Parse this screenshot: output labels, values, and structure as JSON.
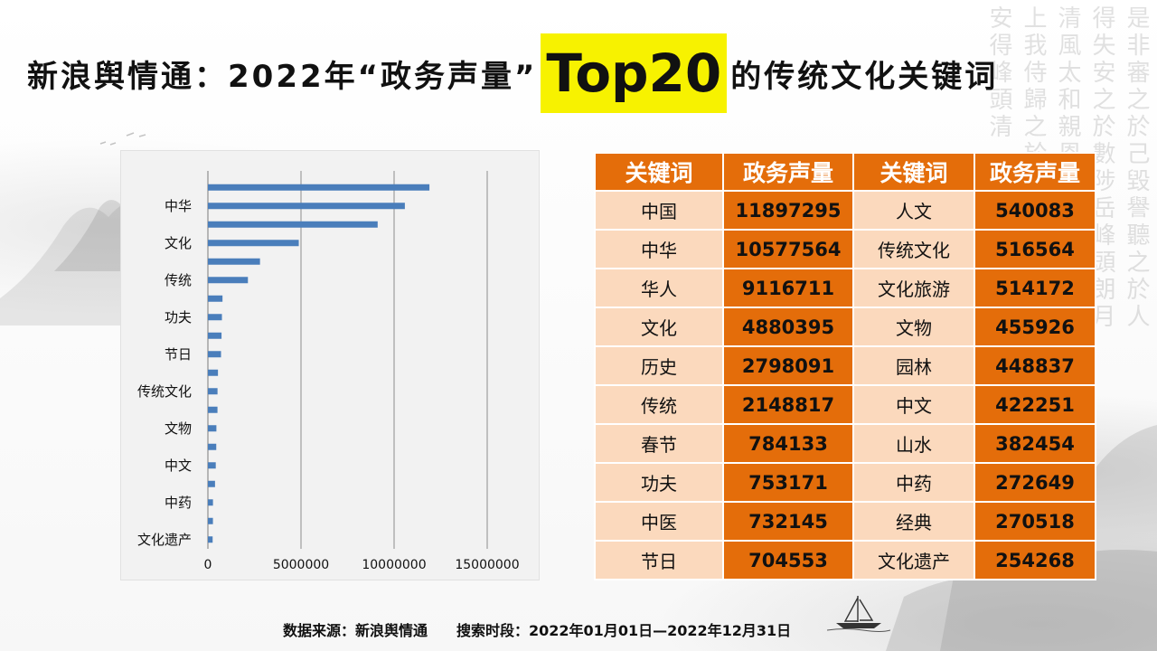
{
  "title": {
    "prefix": "新浪舆情通：2022年“政务声量”",
    "highlight": "Top20",
    "suffix": "的传统文化关键词"
  },
  "colors": {
    "bar": "#4a7ebb",
    "header_orange": "#e46d0a",
    "keyword_cell": "#fbd9bd",
    "highlight_yellow": "#f7f200"
  },
  "table": {
    "headers": [
      "关键词",
      "政务声量",
      "关键词",
      "政务声量"
    ],
    "rows": [
      [
        "中国",
        "11897295",
        "人文",
        "540083"
      ],
      [
        "中华",
        "10577564",
        "传统文化",
        "516564"
      ],
      [
        "华人",
        "9116711",
        "文化旅游",
        "514172"
      ],
      [
        "文化",
        "4880395",
        "文物",
        "455926"
      ],
      [
        "历史",
        "2798091",
        "园林",
        "448837"
      ],
      [
        "传统",
        "2148817",
        "中文",
        "422251"
      ],
      [
        "春节",
        "784133",
        "山水",
        "382454"
      ],
      [
        "功夫",
        "753171",
        "中药",
        "272649"
      ],
      [
        "中医",
        "732145",
        "经典",
        "270518"
      ],
      [
        "节日",
        "704553",
        "文化遗产",
        "254268"
      ]
    ]
  },
  "chart_data": {
    "type": "bar",
    "orientation": "horizontal",
    "categories": [
      "中国",
      "中华",
      "华人",
      "文化",
      "历史",
      "传统",
      "春节",
      "功夫",
      "中医",
      "节日",
      "人文",
      "传统文化",
      "文化旅游",
      "文物",
      "园林",
      "中文",
      "山水",
      "中药",
      "经典",
      "文化遗产"
    ],
    "values": [
      11897295,
      10577564,
      9116711,
      4880395,
      2798091,
      2148817,
      784133,
      753171,
      732145,
      704553,
      540083,
      516564,
      514172,
      455926,
      448837,
      422251,
      382454,
      272649,
      270518,
      254268
    ],
    "visible_tick_labels": [
      "中华",
      "文化",
      "传统",
      "功夫",
      "节日",
      "传统文化",
      "文物",
      "中文",
      "中药",
      "文化遗产"
    ],
    "x_ticks": [
      "0",
      "5000000",
      "10000000",
      "15000000"
    ],
    "xlim": [
      0,
      15000000
    ],
    "grid": "vertical",
    "legend": "none"
  },
  "footer": {
    "source": "数据来源：新浪舆情通",
    "period": "搜索时段：2022年01月01日—2022年12月31日"
  }
}
